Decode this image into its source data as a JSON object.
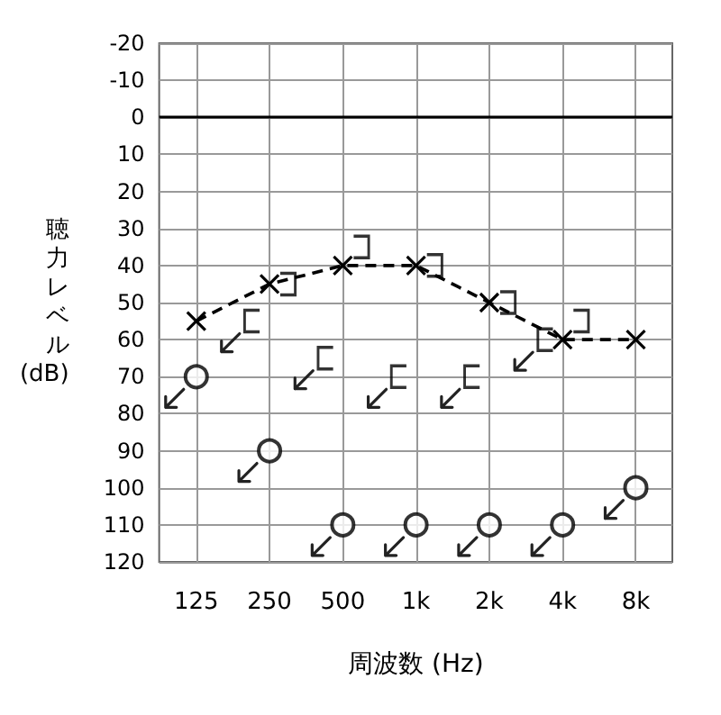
{
  "chart_data": {
    "type": "scatter",
    "xlabel": "周波数 (Hz)",
    "ylabel": "聴力レベル(dB)",
    "log": "x",
    "x": [
      125,
      250,
      500,
      1000,
      2000,
      4000,
      8000
    ],
    "xlim": [
      88,
      11300
    ],
    "xticks": [
      125,
      250,
      500,
      {
        "value": 1000,
        "label": "1k"
      },
      {
        "value": 2000,
        "label": "2k"
      },
      {
        "value": 4000,
        "label": "4k"
      },
      {
        "value": 8000,
        "label": "8k"
      }
    ],
    "ylim": [
      120,
      -20
    ],
    "yticks": [
      -20,
      -10,
      0,
      10,
      20,
      30,
      40,
      50,
      60,
      70,
      80,
      90,
      100,
      110,
      120
    ],
    "grid": true,
    "ref_lines": [
      {
        "axis": "y",
        "value": 0,
        "color": "#000000"
      }
    ],
    "series": [
      {
        "type": "line",
        "marker": "cross",
        "line_style": "dashed",
        "color": "#000000",
        "values": [
          55,
          45,
          40,
          40,
          50,
          60,
          60
        ]
      },
      {
        "x": [
          297,
          595,
          1190,
          2380,
          4760
        ],
        "color": "#000000",
        "values": [
          45,
          35,
          40,
          50,
          55
        ]
      },
      {
        "x": [
          212,
          425,
          850,
          1700,
          3400
        ],
        "color": "#000000",
        "values": [
          55,
          65,
          70,
          70,
          60
        ]
      },
      {
        "marker": "circle",
        "color": "#000000",
        "values": [
          70,
          90,
          110,
          110,
          110,
          110,
          100
        ]
      }
    ]
  }
}
